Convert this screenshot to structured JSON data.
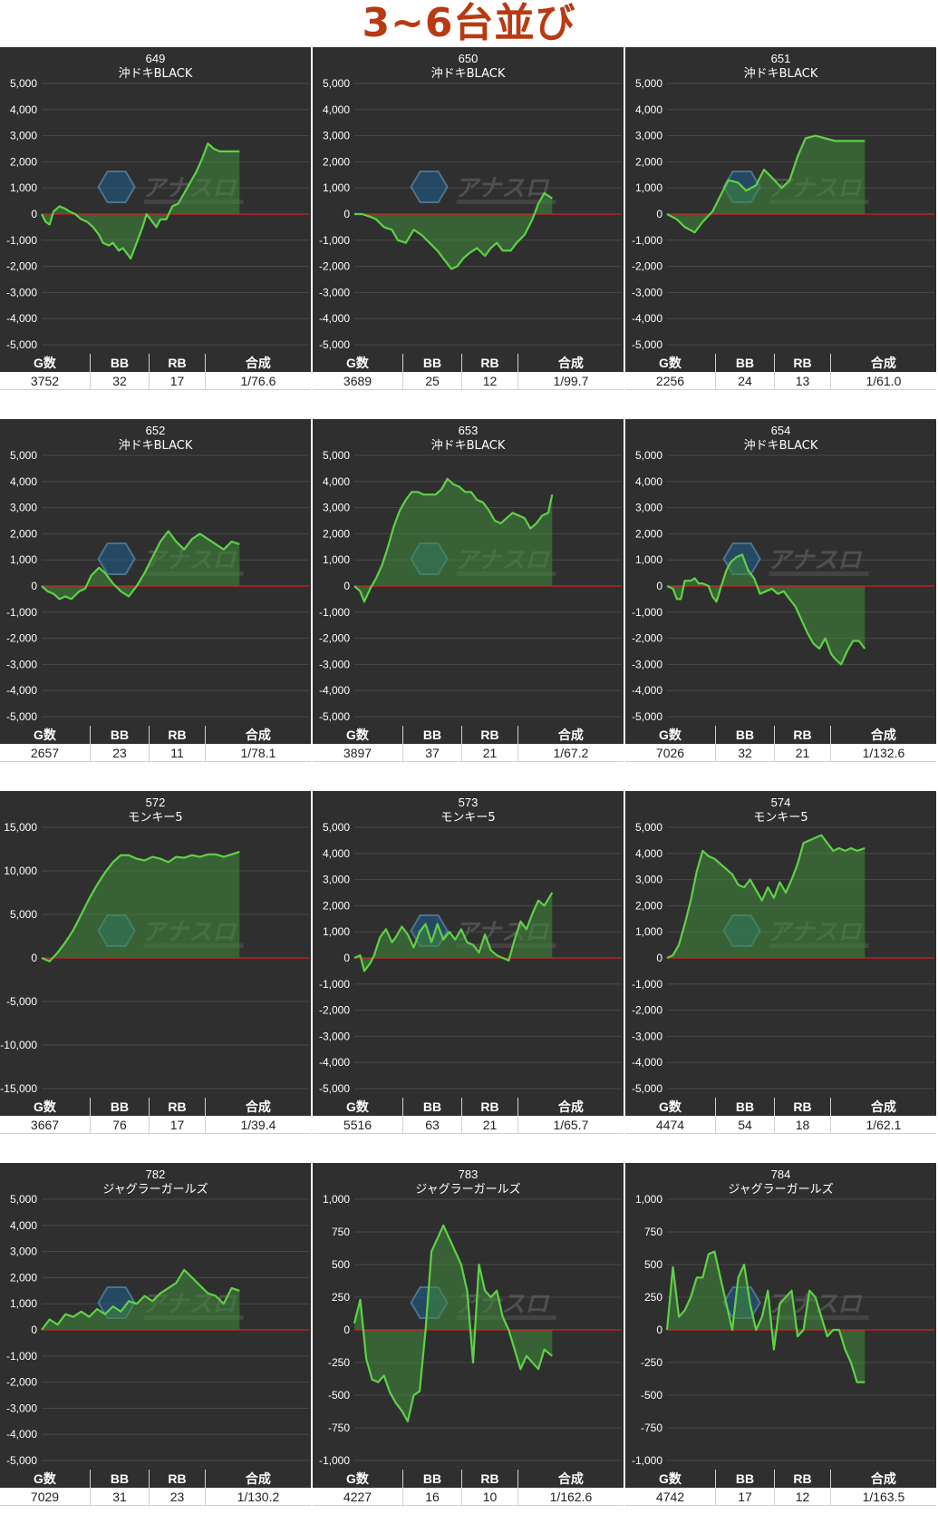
{
  "page": {
    "title": "3~6台並び"
  },
  "stats_headers": {
    "games": "G数",
    "bb": "BB",
    "rb": "RB",
    "combined": "合成"
  },
  "colors": {
    "line": "#5fd147",
    "fill": "#3f8a3a",
    "zero_line": "#d42020",
    "panel_bg": "#2f2f2f",
    "grid": "#4a4a4a",
    "title": "#b83a12"
  },
  "chart_data": [
    {
      "type": "area",
      "machine_number": "649",
      "machine_name": "沖ドキBLACK",
      "ylim": [
        -5000,
        5000
      ],
      "yticks": [
        "5,000",
        "4,000",
        "3,000",
        "2,000",
        "1,000",
        "0",
        "-1,000",
        "-2,000",
        "-3,000",
        "-4,000",
        "-5,000"
      ],
      "x": [
        0,
        0.02,
        0.04,
        0.06,
        0.09,
        0.12,
        0.14,
        0.17,
        0.2,
        0.23,
        0.26,
        0.29,
        0.31,
        0.34,
        0.36,
        0.39,
        0.41,
        0.43,
        0.45,
        0.48,
        0.51,
        0.53,
        0.55,
        0.58,
        0.6,
        0.63,
        0.66,
        0.69,
        0.72,
        0.75,
        0.78,
        0.81,
        0.84,
        0.87,
        0.9,
        0.93,
        0.96,
        1.0
      ],
      "y": [
        0,
        -300,
        -400,
        100,
        300,
        200,
        100,
        0,
        -200,
        -300,
        -500,
        -800,
        -1100,
        -1200,
        -1100,
        -1400,
        -1300,
        -1500,
        -1700,
        -1100,
        -500,
        0,
        -200,
        -500,
        -200,
        -200,
        300,
        400,
        800,
        1200,
        1600,
        2100,
        2700,
        2500,
        2400,
        2400,
        2400,
        2400
      ],
      "stats": {
        "games": "3752",
        "bb": "32",
        "rb": "17",
        "combined": "1/76.6"
      }
    },
    {
      "type": "area",
      "machine_number": "650",
      "machine_name": "沖ドキBLACK",
      "ylim": [
        -5000,
        5000
      ],
      "yticks": [
        "5,000",
        "4,000",
        "3,000",
        "2,000",
        "1,000",
        "0",
        "-1,000",
        "-2,000",
        "-3,000",
        "-4,000",
        "-5,000"
      ],
      "x": [
        0,
        0.04,
        0.08,
        0.11,
        0.15,
        0.19,
        0.22,
        0.26,
        0.3,
        0.34,
        0.38,
        0.42,
        0.46,
        0.49,
        0.52,
        0.55,
        0.58,
        0.62,
        0.66,
        0.69,
        0.72,
        0.75,
        0.79,
        0.82,
        0.86,
        0.9,
        0.93,
        0.96,
        1.0
      ],
      "y": [
        0,
        0,
        -100,
        -200,
        -500,
        -600,
        -1000,
        -1100,
        -600,
        -800,
        -1100,
        -1400,
        -1800,
        -2100,
        -2000,
        -1700,
        -1500,
        -1300,
        -1600,
        -1300,
        -1100,
        -1400,
        -1400,
        -1100,
        -800,
        -200,
        400,
        800,
        600
      ],
      "stats": {
        "games": "3689",
        "bb": "25",
        "rb": "12",
        "combined": "1/99.7"
      }
    },
    {
      "type": "area",
      "machine_number": "651",
      "machine_name": "沖ドキBLACK",
      "ylim": [
        -5000,
        5000
      ],
      "yticks": [
        "5,000",
        "4,000",
        "3,000",
        "2,000",
        "1,000",
        "0",
        "-1,000",
        "-2,000",
        "-3,000",
        "-4,000",
        "-5,000"
      ],
      "x": [
        0,
        0.05,
        0.09,
        0.14,
        0.18,
        0.23,
        0.27,
        0.31,
        0.36,
        0.4,
        0.45,
        0.49,
        0.53,
        0.58,
        0.62,
        0.66,
        0.7,
        0.75,
        0.8,
        0.85,
        0.9,
        0.95,
        1.0
      ],
      "y": [
        0,
        -200,
        -500,
        -700,
        -300,
        100,
        700,
        1300,
        1200,
        900,
        1100,
        1700,
        1400,
        1000,
        1300,
        2200,
        2900,
        3000,
        2900,
        2800,
        2800,
        2800,
        2800
      ],
      "stats": {
        "games": "2256",
        "bb": "24",
        "rb": "13",
        "combined": "1/61.0"
      }
    },
    {
      "type": "area",
      "machine_number": "652",
      "machine_name": "沖ドキBLACK",
      "ylim": [
        -5000,
        5000
      ],
      "yticks": [
        "5,000",
        "4,000",
        "3,000",
        "2,000",
        "1,000",
        "0",
        "-1,000",
        "-2,000",
        "-3,000",
        "-4,000",
        "-5,000"
      ],
      "x": [
        0,
        0.03,
        0.06,
        0.09,
        0.12,
        0.15,
        0.19,
        0.22,
        0.25,
        0.29,
        0.32,
        0.36,
        0.4,
        0.44,
        0.48,
        0.52,
        0.56,
        0.6,
        0.64,
        0.68,
        0.72,
        0.76,
        0.8,
        0.84,
        0.88,
        0.92,
        0.96,
        1.0
      ],
      "y": [
        0,
        -200,
        -300,
        -500,
        -400,
        -500,
        -200,
        -100,
        400,
        700,
        500,
        100,
        -200,
        -400,
        0,
        500,
        1100,
        1700,
        2100,
        1700,
        1400,
        1800,
        2000,
        1800,
        1600,
        1400,
        1700,
        1600
      ],
      "stats": {
        "games": "2657",
        "bb": "23",
        "rb": "11",
        "combined": "1/78.1"
      }
    },
    {
      "type": "area",
      "machine_number": "653",
      "machine_name": "沖ドキBLACK",
      "ylim": [
        -5000,
        5000
      ],
      "yticks": [
        "5,000",
        "4,000",
        "3,000",
        "2,000",
        "1,000",
        "0",
        "-1,000",
        "-2,000",
        "-3,000",
        "-4,000",
        "-5,000"
      ],
      "x": [
        0,
        0.03,
        0.05,
        0.08,
        0.11,
        0.14,
        0.17,
        0.2,
        0.23,
        0.26,
        0.29,
        0.32,
        0.35,
        0.38,
        0.41,
        0.44,
        0.47,
        0.5,
        0.53,
        0.56,
        0.59,
        0.62,
        0.65,
        0.68,
        0.71,
        0.74,
        0.77,
        0.8,
        0.83,
        0.86,
        0.89,
        0.92,
        0.95,
        0.98,
        1.0
      ],
      "y": [
        0,
        -200,
        -600,
        -100,
        300,
        800,
        1500,
        2300,
        2900,
        3300,
        3600,
        3600,
        3500,
        3500,
        3500,
        3700,
        4100,
        3900,
        3800,
        3600,
        3600,
        3300,
        3200,
        2900,
        2500,
        2400,
        2600,
        2800,
        2700,
        2600,
        2200,
        2400,
        2700,
        2800,
        3500
      ],
      "stats": {
        "games": "3897",
        "bb": "37",
        "rb": "21",
        "combined": "1/67.2"
      }
    },
    {
      "type": "area",
      "machine_number": "654",
      "machine_name": "沖ドキBLACK",
      "ylim": [
        -5000,
        5000
      ],
      "yticks": [
        "5,000",
        "4,000",
        "3,000",
        "2,000",
        "1,000",
        "0",
        "-1,000",
        "-2,000",
        "-3,000",
        "-4,000",
        "-5,000"
      ],
      "x": [
        0,
        0.03,
        0.05,
        0.07,
        0.09,
        0.12,
        0.14,
        0.16,
        0.18,
        0.21,
        0.23,
        0.25,
        0.27,
        0.3,
        0.32,
        0.35,
        0.38,
        0.41,
        0.44,
        0.47,
        0.5,
        0.53,
        0.56,
        0.59,
        0.62,
        0.65,
        0.68,
        0.71,
        0.74,
        0.77,
        0.8,
        0.83,
        0.85,
        0.88,
        0.91,
        0.94,
        0.97,
        1.0
      ],
      "y": [
        0,
        -100,
        -500,
        -500,
        200,
        200,
        300,
        100,
        100,
        0,
        -400,
        -600,
        -100,
        600,
        900,
        1100,
        1200,
        600,
        300,
        -300,
        -200,
        -100,
        -300,
        -200,
        -500,
        -800,
        -1300,
        -1800,
        -2200,
        -2400,
        -2000,
        -2600,
        -2800,
        -3000,
        -2500,
        -2100,
        -2100,
        -2400
      ],
      "stats": {
        "games": "7026",
        "bb": "32",
        "rb": "21",
        "combined": "1/132.6"
      }
    },
    {
      "type": "area",
      "machine_number": "572",
      "machine_name": "モンキー5",
      "ylim": [
        -15000,
        15000
      ],
      "yticks": [
        "15,000",
        "10,000",
        "5,000",
        "0",
        "-5,000",
        "-10,000",
        "-15,000"
      ],
      "x": [
        0,
        0.04,
        0.08,
        0.12,
        0.16,
        0.2,
        0.24,
        0.28,
        0.32,
        0.36,
        0.4,
        0.44,
        0.48,
        0.52,
        0.56,
        0.6,
        0.64,
        0.68,
        0.72,
        0.76,
        0.8,
        0.84,
        0.88,
        0.92,
        0.96,
        1.0
      ],
      "y": [
        0,
        -400,
        600,
        1800,
        3200,
        5000,
        6800,
        8400,
        9800,
        11000,
        11800,
        11800,
        11400,
        11200,
        11600,
        11400,
        11000,
        11600,
        11500,
        11800,
        11600,
        11900,
        11900,
        11600,
        11900,
        12200
      ],
      "stats": {
        "games": "3667",
        "bb": "76",
        "rb": "17",
        "combined": "1/39.4"
      }
    },
    {
      "type": "area",
      "machine_number": "573",
      "machine_name": "モンキー5",
      "ylim": [
        -5000,
        5000
      ],
      "yticks": [
        "5,000",
        "4,000",
        "3,000",
        "2,000",
        "1,000",
        "0",
        "-1,000",
        "-2,000",
        "-3,000",
        "-4,000",
        "-5,000"
      ],
      "x": [
        0,
        0.03,
        0.05,
        0.08,
        0.1,
        0.13,
        0.16,
        0.19,
        0.21,
        0.24,
        0.27,
        0.3,
        0.33,
        0.36,
        0.39,
        0.42,
        0.45,
        0.48,
        0.51,
        0.54,
        0.57,
        0.6,
        0.63,
        0.66,
        0.69,
        0.72,
        0.75,
        0.78,
        0.81,
        0.84,
        0.87,
        0.9,
        0.93,
        0.96,
        1.0
      ],
      "y": [
        0,
        100,
        -500,
        -200,
        100,
        800,
        1100,
        600,
        800,
        1200,
        900,
        400,
        1000,
        1300,
        600,
        1300,
        700,
        1000,
        700,
        1100,
        600,
        500,
        200,
        900,
        300,
        100,
        0,
        -100,
        700,
        1400,
        1100,
        1700,
        2200,
        2000,
        2500
      ],
      "stats": {
        "games": "5516",
        "bb": "63",
        "rb": "21",
        "combined": "1/65.7"
      }
    },
    {
      "type": "area",
      "machine_number": "574",
      "machine_name": "モンキー5",
      "ylim": [
        -5000,
        5000
      ],
      "yticks": [
        "5,000",
        "4,000",
        "3,000",
        "2,000",
        "1,000",
        "0",
        "-1,000",
        "-2,000",
        "-3,000",
        "-4,000",
        "-5,000"
      ],
      "x": [
        0,
        0.03,
        0.06,
        0.09,
        0.12,
        0.15,
        0.18,
        0.21,
        0.24,
        0.27,
        0.3,
        0.33,
        0.36,
        0.39,
        0.42,
        0.45,
        0.48,
        0.51,
        0.54,
        0.57,
        0.6,
        0.63,
        0.66,
        0.69,
        0.72,
        0.75,
        0.78,
        0.81,
        0.84,
        0.87,
        0.9,
        0.93,
        0.96,
        1.0
      ],
      "y": [
        0,
        100,
        500,
        1300,
        2200,
        3300,
        4100,
        3900,
        3800,
        3600,
        3400,
        3200,
        2800,
        2700,
        3000,
        2600,
        2200,
        2700,
        2300,
        2900,
        2500,
        3000,
        3600,
        4400,
        4500,
        4600,
        4700,
        4400,
        4100,
        4200,
        4100,
        4200,
        4100,
        4200
      ],
      "stats": {
        "games": "4474",
        "bb": "54",
        "rb": "18",
        "combined": "1/62.1"
      }
    },
    {
      "type": "area",
      "machine_number": "782",
      "machine_name": "ジャグラーガールズ",
      "ylim": [
        -5000,
        5000
      ],
      "yticks": [
        "5,000",
        "4,000",
        "3,000",
        "2,000",
        "1,000",
        "0",
        "-1,000",
        "-2,000",
        "-3,000",
        "-4,000",
        "-5,000"
      ],
      "x": [
        0,
        0.04,
        0.08,
        0.12,
        0.16,
        0.2,
        0.24,
        0.28,
        0.32,
        0.36,
        0.4,
        0.44,
        0.48,
        0.52,
        0.56,
        0.6,
        0.64,
        0.68,
        0.72,
        0.76,
        0.8,
        0.84,
        0.88,
        0.92,
        0.96,
        1.0
      ],
      "y": [
        0,
        400,
        200,
        600,
        500,
        700,
        500,
        800,
        600,
        900,
        700,
        1100,
        1000,
        1300,
        1100,
        1400,
        1600,
        1800,
        2300,
        2000,
        1700,
        1400,
        1300,
        1000,
        1600,
        1500
      ],
      "stats": {
        "games": "7029",
        "bb": "31",
        "rb": "23",
        "combined": "1/130.2"
      }
    },
    {
      "type": "area",
      "machine_number": "783",
      "machine_name": "ジャグラーガールズ",
      "ylim": [
        -1000,
        1000
      ],
      "yticks": [
        "1,000",
        "750",
        "500",
        "250",
        "0",
        "-250",
        "-500",
        "-750",
        "-1,000"
      ],
      "x": [
        0,
        0.03,
        0.06,
        0.09,
        0.12,
        0.15,
        0.18,
        0.21,
        0.24,
        0.27,
        0.3,
        0.33,
        0.36,
        0.39,
        0.42,
        0.45,
        0.48,
        0.51,
        0.54,
        0.57,
        0.6,
        0.63,
        0.66,
        0.69,
        0.72,
        0.75,
        0.78,
        0.81,
        0.84,
        0.87,
        0.9,
        0.93,
        0.96,
        1.0
      ],
      "y": [
        50,
        230,
        -220,
        -380,
        -400,
        -350,
        -480,
        -560,
        -620,
        -700,
        -500,
        -470,
        0,
        600,
        700,
        800,
        700,
        600,
        500,
        300,
        -250,
        500,
        300,
        250,
        300,
        100,
        0,
        -150,
        -300,
        -200,
        -250,
        -300,
        -150,
        -200
      ],
      "stats": {
        "games": "4227",
        "bb": "16",
        "rb": "10",
        "combined": "1/162.6"
      }
    },
    {
      "type": "area",
      "machine_number": "784",
      "machine_name": "ジャグラーガールズ",
      "ylim": [
        -1000,
        1000
      ],
      "yticks": [
        "1,000",
        "750",
        "500",
        "250",
        "0",
        "-250",
        "-500",
        "-750",
        "-1,000"
      ],
      "x": [
        0,
        0.03,
        0.06,
        0.09,
        0.12,
        0.15,
        0.18,
        0.21,
        0.24,
        0.27,
        0.3,
        0.33,
        0.36,
        0.39,
        0.42,
        0.45,
        0.48,
        0.51,
        0.54,
        0.57,
        0.6,
        0.63,
        0.66,
        0.69,
        0.72,
        0.75,
        0.78,
        0.81,
        0.84,
        0.87,
        0.9,
        0.93,
        0.96,
        1.0
      ],
      "y": [
        0,
        480,
        100,
        150,
        250,
        400,
        400,
        580,
        600,
        400,
        200,
        0,
        400,
        500,
        200,
        0,
        100,
        300,
        -150,
        200,
        250,
        300,
        -50,
        0,
        300,
        250,
        100,
        -50,
        0,
        0,
        -150,
        -250,
        -400,
        -400
      ],
      "stats": {
        "games": "4742",
        "bb": "17",
        "rb": "12",
        "combined": "1/163.5"
      }
    }
  ]
}
